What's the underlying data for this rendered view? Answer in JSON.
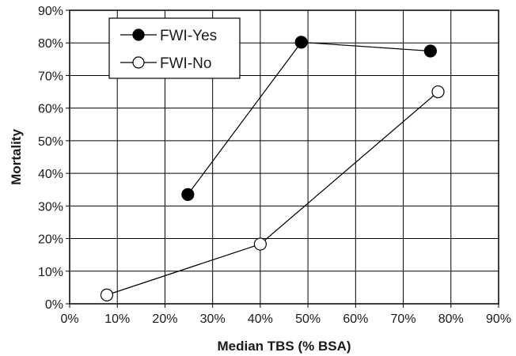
{
  "chart_data": {
    "type": "scatter",
    "xlabel": "Median TBS (% BSA)",
    "ylabel": "Mortality",
    "xlim": [
      0,
      90
    ],
    "ylim": [
      0,
      90
    ],
    "xticks": [
      0,
      10,
      20,
      30,
      40,
      50,
      60,
      70,
      80,
      90
    ],
    "yticks": [
      0,
      10,
      20,
      30,
      40,
      50,
      60,
      70,
      80,
      90
    ],
    "tick_format": "%",
    "grid": true,
    "legend_position": "top-left",
    "series": [
      {
        "name": "FWI-Yes",
        "marker": "filled-circle",
        "color": "#000000",
        "x": [
          24.8,
          48.6,
          75.7
        ],
        "y": [
          33.5,
          80.2,
          77.5
        ]
      },
      {
        "name": "FWI-No",
        "marker": "open-circle",
        "color": "#000000",
        "x": [
          7.8,
          40.0,
          77.3
        ],
        "y": [
          2.7,
          18.3,
          65.0
        ]
      }
    ]
  }
}
